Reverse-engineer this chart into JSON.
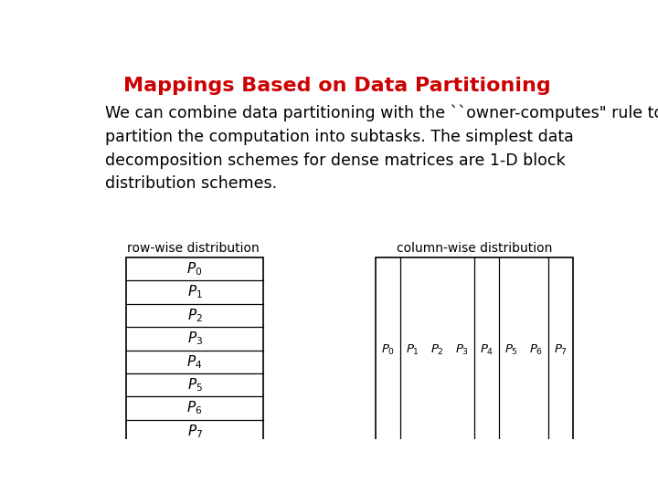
{
  "title": "Mappings Based on Data Partitioning",
  "title_color": "#cc0000",
  "title_fontsize": 16,
  "body_text": "We can combine data partitioning with the ``owner-computes\" rule to\npartition the computation into subtasks. The simplest data\ndecomposition schemes for dense matrices are 1-D block\ndistribution schemes.",
  "body_fontsize": 12.5,
  "row_label": "row-wise distribution",
  "col_label": "column-wise distribution",
  "label_fontsize": 10,
  "row_processes": [
    "P_0",
    "P_1",
    "P_2",
    "P_3",
    "P_4",
    "P_5",
    "P_6",
    "P_7"
  ],
  "col_processes": [
    "P_0",
    "P_1",
    "P_2",
    "P_3",
    "P_4",
    "P_5",
    "P_6",
    "P_7"
  ],
  "col_dividers": [
    1,
    4,
    5,
    7
  ],
  "background_color": "#ffffff"
}
